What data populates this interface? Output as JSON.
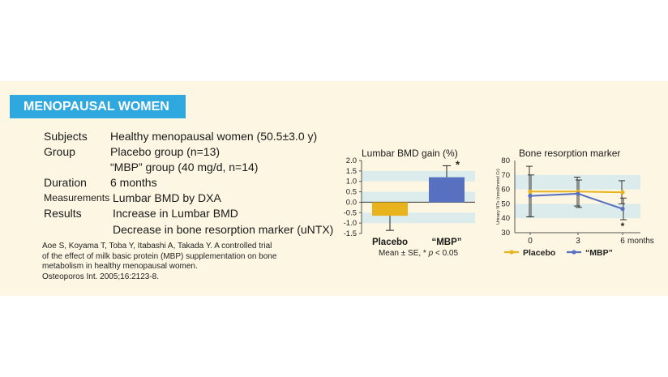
{
  "banner": "MENOPAUSAL WOMEN",
  "rows": {
    "subjects": {
      "label": "Subjects",
      "value": "Healthy menopausal women (50.5±3.0 y)"
    },
    "group": {
      "label": "Group",
      "value": "Placebo group (n=13)",
      "value2": "“MBP” group (40 mg/d, n=14)"
    },
    "duration": {
      "label": "Duration",
      "value": "6 months"
    },
    "measurements": {
      "label": "Measurements",
      "value": "Lumbar BMD by DXA"
    },
    "results": {
      "label": "Results",
      "value": "Increase in Lumbar BMD",
      "value2": "Decrease in bone resorption marker (uNTX)"
    }
  },
  "reference": [
    "Aoe S, Koyama T, Toba Y, Itabashi A, Takada Y. A controlled trial",
    "of the effect of milk basic protein (MBP) supplementation on bone",
    "metabolism in healthy menopausal women.",
    "Osteoporos Int. 2005;16:2123-8."
  ],
  "colors": {
    "placebo": "#e8b31c",
    "mbp": "#5870c0",
    "banner": "#2fa8e0",
    "band": "#dcecec"
  },
  "chart_data": [
    {
      "type": "bar",
      "title": "Lumbar BMD gain (%)",
      "categories": [
        "Placebo",
        "“MBP”"
      ],
      "values": [
        -0.65,
        1.2
      ],
      "error": [
        0.7,
        0.55
      ],
      "ylim": [
        -1.5,
        2.0
      ],
      "yticks": [
        "-1.5",
        "-1.0",
        "-0.5",
        "0.0",
        "0.5",
        "1.0",
        "1.5",
        "2.0"
      ],
      "annotation": "*",
      "note": "Mean ± SE, * p < 0.05",
      "note_parts": [
        "Mean ± SE, * ",
        "p",
        " < 0.05"
      ]
    },
    {
      "type": "line",
      "title": "Bone resorption marker",
      "ylabel": "Urinary NTx (nmol/mmol Cr)",
      "x": [
        0,
        3,
        6
      ],
      "xticks": [
        "0",
        "3",
        "6"
      ],
      "xunit": "months",
      "ylim": [
        30,
        80
      ],
      "yticks": [
        "30",
        "40",
        "50",
        "60",
        "70",
        "80"
      ],
      "series": [
        {
          "name": "Placebo",
          "values": [
            58.5,
            58.5,
            58
          ],
          "error": [
            17.5,
            10,
            8
          ]
        },
        {
          "name": "“MBP”",
          "values": [
            55.5,
            57,
            46.5
          ],
          "error": [
            14.5,
            9.5,
            7.5
          ]
        }
      ],
      "annotation": "*"
    }
  ]
}
